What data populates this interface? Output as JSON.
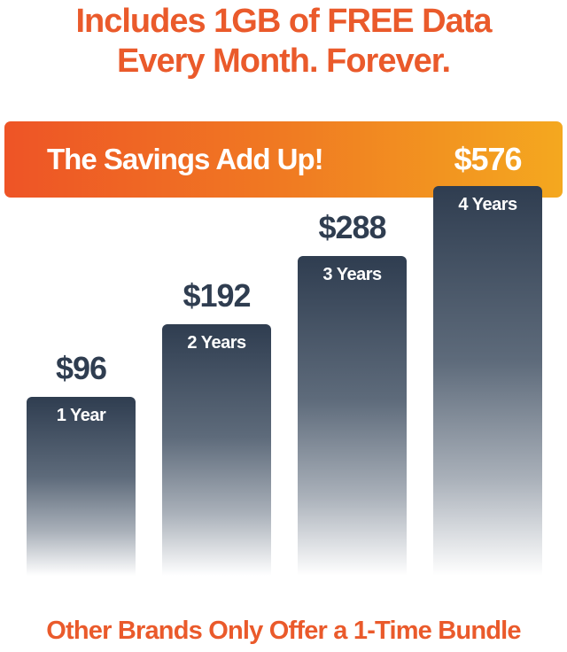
{
  "title": {
    "line1": "Includes 1GB of FREE Data",
    "line2": "Every Month. Forever."
  },
  "banner": {
    "text": "The Savings Add Up!"
  },
  "footer": {
    "text": "Other Brands Only Offer a 1-Time Bundle"
  },
  "colors": {
    "accent": "#ea5a2b",
    "banner_start": "#ee5426",
    "banner_end": "#f4a81f",
    "bar": "#2f3d50"
  },
  "chart_data": {
    "type": "bar",
    "categories": [
      "1 Year",
      "2 Years",
      "3 Years",
      "4 Years"
    ],
    "values": [
      96,
      192,
      288,
      576
    ],
    "value_labels": [
      "$96",
      "$192",
      "$288",
      "$576"
    ],
    "title": "The Savings Add Up!",
    "grid": false
  }
}
